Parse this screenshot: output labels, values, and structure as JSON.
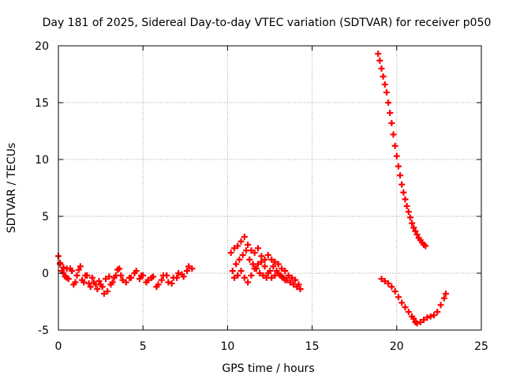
{
  "chart_data": {
    "type": "scatter",
    "title": "Day 181 of 2025, Sidereal Day-to-day VTEC variation (SDTVAR) for receiver p050",
    "xlabel": "GPS time / hours",
    "ylabel": "SDTVAR / TECUs",
    "xlim": [
      0,
      25
    ],
    "ylim": [
      -5,
      20
    ],
    "xticks": [
      "0",
      "5",
      "10",
      "15",
      "20",
      "25"
    ],
    "yticks": [
      "-5",
      "0",
      "5",
      "10",
      "15",
      "20"
    ],
    "grid": true,
    "marker_color": "#ff0000",
    "series": [
      {
        "name": "SDTVAR",
        "x": [
          0.0,
          0.1,
          0.2,
          0.3,
          0.4,
          0.5,
          0.6,
          0.8,
          1.0,
          1.2,
          1.4,
          1.6,
          1.8,
          2.0,
          2.2,
          2.4,
          2.6,
          2.8,
          3.0,
          3.2,
          3.4,
          3.6,
          3.8,
          4.2,
          4.5,
          4.8,
          5.0,
          5.3,
          5.6,
          5.9,
          6.2,
          6.5,
          6.8,
          7.1,
          7.4,
          7.7,
          7.9,
          0.1,
          0.3,
          0.5,
          0.7,
          0.9,
          1.1,
          1.3,
          1.5,
          1.7,
          1.9,
          2.1,
          2.3,
          2.5,
          2.7,
          2.9,
          3.1,
          3.3,
          3.5,
          3.7,
          4.0,
          4.3,
          4.6,
          4.9,
          5.2,
          5.5,
          5.8,
          6.1,
          6.4,
          6.7,
          7.0,
          7.3,
          7.6,
          10.2,
          10.4,
          10.6,
          10.8,
          11.0,
          11.2,
          11.4,
          11.6,
          11.8,
          12.0,
          12.2,
          12.4,
          12.6,
          12.8,
          13.0,
          13.2,
          13.4,
          13.6,
          13.8,
          14.0,
          14.2,
          10.3,
          10.5,
          10.7,
          10.9,
          11.1,
          11.3,
          11.5,
          11.7,
          11.9,
          12.1,
          12.3,
          12.5,
          12.7,
          12.9,
          13.1,
          13.3,
          13.5,
          13.7,
          13.9,
          14.1,
          14.3,
          10.4,
          10.6,
          10.8,
          11.0,
          11.2,
          11.4,
          11.6,
          11.8,
          12.0,
          12.2,
          12.4,
          12.6,
          12.8,
          13.0,
          13.2,
          13.4,
          18.9,
          19.0,
          19.1,
          19.2,
          19.3,
          19.4,
          19.5,
          19.6,
          19.7,
          19.8,
          19.9,
          20.0,
          20.1,
          20.2,
          20.3,
          20.4,
          20.5,
          20.6,
          20.7,
          20.8,
          20.9,
          21.0,
          21.1,
          21.2,
          21.3,
          21.4,
          21.5,
          21.6,
          21.7,
          19.1,
          19.3,
          19.5,
          19.7,
          19.9,
          20.1,
          20.3,
          20.5,
          20.7,
          20.9,
          21.0,
          21.1,
          21.2,
          21.4,
          21.6,
          21.8,
          22.0,
          22.2,
          22.4,
          22.6,
          22.8,
          22.9
        ],
        "y": [
          1.5,
          0.8,
          0.2,
          0.5,
          -0.3,
          0.4,
          -0.5,
          0.2,
          -0.8,
          0.3,
          -0.6,
          -0.2,
          -0.9,
          -0.4,
          -1.0,
          -0.7,
          -1.2,
          -0.5,
          -0.3,
          -0.8,
          -0.2,
          0.4,
          -0.6,
          -0.4,
          0.0,
          -0.5,
          -0.2,
          -0.6,
          -0.3,
          -1.0,
          -0.2,
          -0.8,
          -0.4,
          0.0,
          -0.3,
          0.6,
          0.4,
          0.9,
          0.0,
          -0.4,
          0.4,
          -1.0,
          -0.2,
          0.6,
          -0.8,
          -0.2,
          -1.2,
          -0.8,
          -1.4,
          -1.0,
          -1.8,
          -1.6,
          -1.0,
          -0.4,
          0.3,
          -0.2,
          -0.8,
          -0.4,
          0.2,
          -0.2,
          -0.8,
          -0.4,
          -1.2,
          -0.6,
          -0.2,
          -0.9,
          -0.4,
          -0.1,
          0.2,
          1.8,
          2.2,
          2.4,
          2.8,
          3.2,
          2.5,
          2.0,
          1.8,
          2.2,
          1.5,
          1.2,
          1.6,
          1.2,
          1.0,
          0.8,
          0.4,
          0.2,
          -0.2,
          -0.4,
          -0.6,
          -1.0,
          0.2,
          0.8,
          1.2,
          1.6,
          2.0,
          1.2,
          0.8,
          0.4,
          0.0,
          -0.2,
          -0.4,
          0.2,
          0.6,
          0.2,
          -0.2,
          -0.4,
          -0.6,
          -0.8,
          -1.0,
          -1.2,
          -1.4,
          -0.4,
          -0.2,
          0.2,
          -0.4,
          -0.8,
          -0.2,
          0.4,
          0.8,
          1.0,
          0.6,
          0.0,
          -0.4,
          -0.2,
          0.0,
          -0.3,
          -0.6,
          19.3,
          18.7,
          18.0,
          17.3,
          16.6,
          15.9,
          15.0,
          14.1,
          13.2,
          12.2,
          11.2,
          10.3,
          9.4,
          8.6,
          7.8,
          7.1,
          6.5,
          5.9,
          5.4,
          4.9,
          4.4,
          4.0,
          3.7,
          3.4,
          3.1,
          2.9,
          2.7,
          2.5,
          2.4,
          -0.5,
          -0.7,
          -0.9,
          -1.2,
          -1.6,
          -2.1,
          -2.6,
          -3.0,
          -3.4,
          -3.8,
          -4.0,
          -4.3,
          -4.4,
          -4.3,
          -4.1,
          -3.9,
          -3.8,
          -3.7,
          -3.4,
          -2.8,
          -2.2,
          -1.8
        ]
      }
    ]
  }
}
